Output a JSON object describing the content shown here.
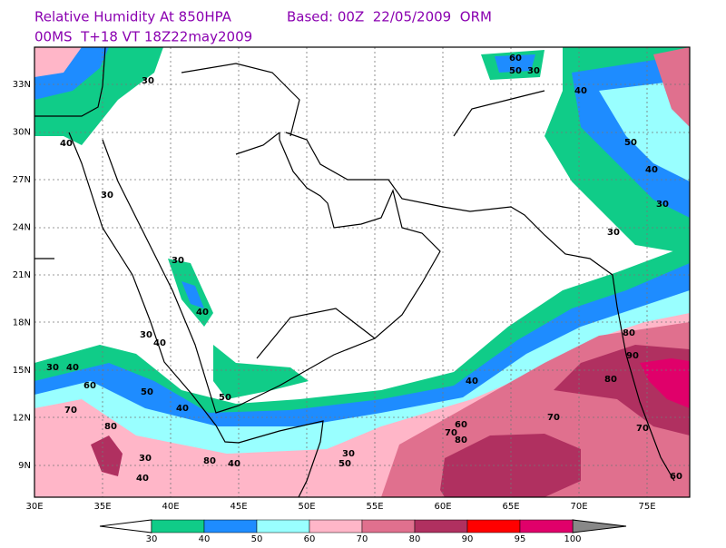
{
  "header": {
    "title": "Relative Humidity At 850HPA",
    "based": "Based: 00Z  22/05/2009  ORM",
    "subtitle": "00MS  T+18 VT 18Z22may2009"
  },
  "lat_labels": [
    "33N",
    "30N",
    "27N",
    "24N",
    "21N",
    "18N",
    "15N",
    "12N",
    "9N"
  ],
  "lon_labels": [
    "30E",
    "35E",
    "40E",
    "45E",
    "50E",
    "55E",
    "60E",
    "65E",
    "70E",
    "75E"
  ],
  "colorbar": {
    "levels": [
      30,
      40,
      50,
      60,
      70,
      80,
      90,
      95,
      100
    ],
    "colors": [
      "#10cc88",
      "#1e8cff",
      "#99ffff",
      "#ffb6c8",
      "#e0708e",
      "#b03060",
      "#ff0000",
      "#e0006a"
    ]
  },
  "contour_labels": [
    "30",
    "30",
    "40",
    "30",
    "40",
    "30",
    "40",
    "30",
    "40",
    "60",
    "70",
    "80",
    "50",
    "40",
    "30",
    "40",
    "50",
    "30",
    "40",
    "50",
    "80",
    "70",
    "80",
    "60",
    "70",
    "80",
    "90",
    "80",
    "70",
    "60",
    "30",
    "40",
    "50",
    "30",
    "40",
    "60",
    "50",
    "30",
    "40"
  ]
}
